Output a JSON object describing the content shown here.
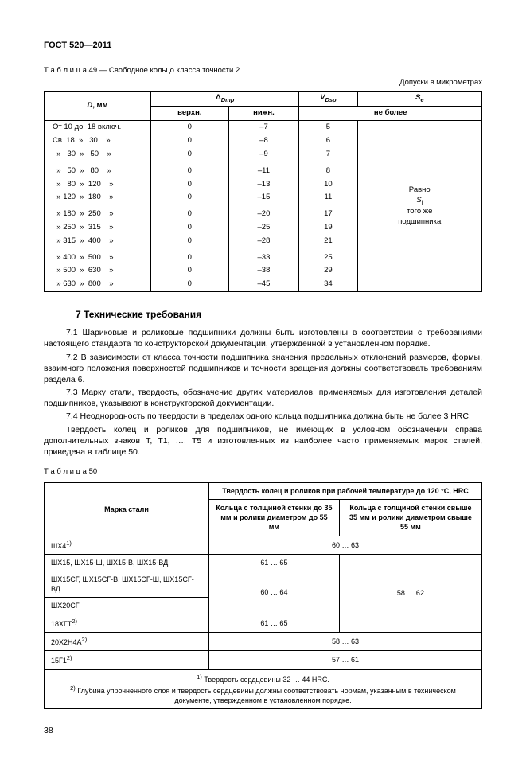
{
  "header": "ГОСТ 520—2011",
  "table49": {
    "caption": "Т а б л и ц а  49 — Свободное кольцо класса точности 2",
    "tolerance_note": "Допуски в микрометрах",
    "col_d": "D, мм",
    "col_dmp": "Δ_Dmp",
    "col_vdsp": "V_Dsp",
    "col_se": "S_e",
    "col_upper": "верхн.",
    "col_lower": "нижн.",
    "col_notmore": "не более",
    "se_text1": "Равно",
    "se_text2": "S_i",
    "se_text3": "того же",
    "se_text4": "подшипника",
    "rows": [
      {
        "d": "От 10 до  18 включ.",
        "u": "0",
        "l": "–7",
        "v": "5"
      },
      {
        "d": "Св. 18  »   30    »",
        "u": "0",
        "l": "–8",
        "v": "6"
      },
      {
        "d": "  »   30  »   50    »",
        "u": "0",
        "l": "–9",
        "v": "7"
      },
      {
        "d": "",
        "u": "",
        "l": "",
        "v": ""
      },
      {
        "d": "  »   50  »   80    »",
        "u": "0",
        "l": "–11",
        "v": "8"
      },
      {
        "d": "  »   80  »  120    »",
        "u": "0",
        "l": "–13",
        "v": "10"
      },
      {
        "d": "  » 120  »  180    »",
        "u": "0",
        "l": "–15",
        "v": "11"
      },
      {
        "d": "",
        "u": "",
        "l": "",
        "v": ""
      },
      {
        "d": "  » 180  »  250    »",
        "u": "0",
        "l": "–20",
        "v": "17"
      },
      {
        "d": "  » 250  »  315    »",
        "u": "0",
        "l": "–25",
        "v": "19"
      },
      {
        "d": "  » 315  »  400    »",
        "u": "0",
        "l": "–28",
        "v": "21"
      },
      {
        "d": "",
        "u": "",
        "l": "",
        "v": ""
      },
      {
        "d": "  » 400  »  500    »",
        "u": "0",
        "l": "–33",
        "v": "25"
      },
      {
        "d": "  » 500  »  630    »",
        "u": "0",
        "l": "–38",
        "v": "29"
      },
      {
        "d": "  » 630  »  800    »",
        "u": "0",
        "l": "–45",
        "v": "34"
      }
    ]
  },
  "section_title": "7  Технические требования",
  "p71": "7.1 Шариковые и роликовые подшипники должны быть изготовлены в соответствии с требованиями настоящего стандарта по конструкторской документации, утвержденной в установленном порядке.",
  "p72": "7.2 В зависимости от класса точности подшипника значения предельных отклонений размеров, формы, взаимного положения поверхностей подшипников и точности вращения должны соответствовать требованиям раздела 6.",
  "p73": "7.3 Марку стали, твердость, обозначение других материалов, применяемых для изготовления деталей подшипников, указывают в конструкторской документации.",
  "p74": "7.4 Неоднородность по твердости в пределах одного кольца подшипника должна быть не более 3 HRC.",
  "p_hard": "Твердость колец и роликов для подшипников, не имеющих в условном обозначении справа дополнительных знаков Т, Т1, …, Т5 и изготовленных из наиболее часто применяемых марок сталей, приведена в таблице 50.",
  "table50": {
    "caption": "Т а б л и ц а  50",
    "col_steel": "Марка стали",
    "col_header": "Твердость колец и роликов при рабочей температуре до 120  °C, HRC",
    "col_sub1": "Кольца с толщиной стенки до 35 мм и ролики диаметром до 55 мм",
    "col_sub2": "Кольца с толщиной стенки свыше 35 мм и ролики диаметром свыше 55 мм",
    "r1_steel": "ШХ4^1)",
    "r1_val": "60 … 63",
    "r2_steel": "ШХ15, ШХ15-Ш, ШХ15-В, ШХ15-ВД",
    "r2_val": "61 … 65",
    "r3_steel": "ШХ15СГ, ШХ15СГ-В, ШХ15СГ-Ш, ШХ15СГ-ВД",
    "r3_val": "60 … 64",
    "r23_val2": "58 … 62",
    "r4_steel": "ШХ20СГ",
    "r5_steel": "18ХГТ^2)",
    "r5_val": "61 … 65",
    "r6_steel": "20Х2Н4А^2)",
    "r6_val": "58 … 63",
    "r7_steel": "15Г1^2)",
    "r7_val": "57 … 61",
    "fn1": "^1) Твердость сердцевины 32 … 44 HRC.",
    "fn2": "^2) Глубина упрочненного слоя и твердость сердцевины должны соответствовать нормам, указанным в техническом документе, утвержденном в установленном порядке."
  },
  "page_num": "38"
}
